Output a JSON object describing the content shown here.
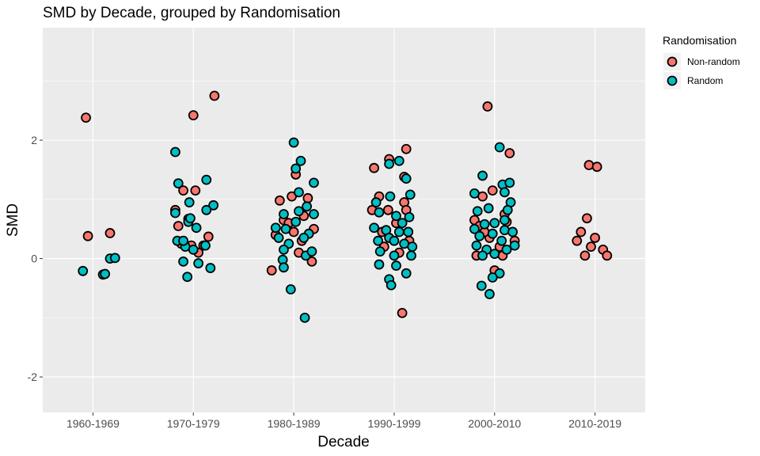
{
  "chart_data": {
    "type": "scatter",
    "title": "SMD by Decade, grouped by Randomisation",
    "xlabel": "Decade",
    "ylabel": "SMD",
    "categories": [
      "1960-1969",
      "1970-1979",
      "1980-1989",
      "1990-1999",
      "2000-2010",
      "2010-2019"
    ],
    "ylim": [
      -2.6,
      3.9
    ],
    "yticks": [
      -2,
      0,
      2
    ],
    "grid": true,
    "legend": {
      "title": "Randomisation",
      "position": "right"
    },
    "series": [
      {
        "name": "Non-random",
        "color": "#F8766D",
        "points": [
          {
            "x": "1960-1969",
            "offset": -0.05,
            "y": 0.38
          },
          {
            "x": "1960-1969",
            "offset": -0.07,
            "y": 2.38
          },
          {
            "x": "1960-1969",
            "offset": 0.17,
            "y": 0.43
          },
          {
            "x": "1970-1979",
            "offset": -0.18,
            "y": 0.82
          },
          {
            "x": "1970-1979",
            "offset": -0.1,
            "y": 1.15
          },
          {
            "x": "1970-1979",
            "offset": 0.0,
            "y": 2.42
          },
          {
            "x": "1970-1979",
            "offset": 0.21,
            "y": 2.75
          },
          {
            "x": "1970-1979",
            "offset": -0.05,
            "y": 0.67
          },
          {
            "x": "1970-1979",
            "offset": 0.02,
            "y": 1.15
          },
          {
            "x": "1970-1979",
            "offset": 0.15,
            "y": 0.37
          },
          {
            "x": "1970-1979",
            "offset": -0.02,
            "y": 0.22
          },
          {
            "x": "1970-1979",
            "offset": 0.1,
            "y": 0.22
          },
          {
            "x": "1970-1979",
            "offset": -0.12,
            "y": 0.25
          },
          {
            "x": "1970-1979",
            "offset": 0.05,
            "y": 0.1
          },
          {
            "x": "1970-1979",
            "offset": -0.15,
            "y": 0.55
          },
          {
            "x": "1980-1989",
            "offset": -0.22,
            "y": -0.2
          },
          {
            "x": "1980-1989",
            "offset": -0.14,
            "y": 0.98
          },
          {
            "x": "1980-1989",
            "offset": 0.02,
            "y": 1.42
          },
          {
            "x": "1980-1989",
            "offset": 0.14,
            "y": 1.02
          },
          {
            "x": "1980-1989",
            "offset": -0.1,
            "y": 0.65
          },
          {
            "x": "1980-1989",
            "offset": 0.0,
            "y": 0.45
          },
          {
            "x": "1980-1989",
            "offset": 0.08,
            "y": 0.3
          },
          {
            "x": "1980-1989",
            "offset": 0.2,
            "y": 0.5
          },
          {
            "x": "1980-1989",
            "offset": -0.05,
            "y": 0.6
          },
          {
            "x": "1980-1989",
            "offset": 0.05,
            "y": 0.1
          },
          {
            "x": "1980-1989",
            "offset": 0.18,
            "y": -0.05
          },
          {
            "x": "1980-1989",
            "offset": -0.18,
            "y": 0.4
          },
          {
            "x": "1980-1989",
            "offset": 0.1,
            "y": 0.72
          },
          {
            "x": "1980-1989",
            "offset": -0.02,
            "y": 1.05
          },
          {
            "x": "1990-1999",
            "offset": -0.22,
            "y": 0.82
          },
          {
            "x": "1990-1999",
            "offset": -0.2,
            "y": 1.53
          },
          {
            "x": "1990-1999",
            "offset": -0.15,
            "y": 1.05
          },
          {
            "x": "1990-1999",
            "offset": -0.06,
            "y": 0.82
          },
          {
            "x": "1990-1999",
            "offset": -0.05,
            "y": 1.68
          },
          {
            "x": "1990-1999",
            "offset": 0.1,
            "y": 1.38
          },
          {
            "x": "1990-1999",
            "offset": 0.12,
            "y": 1.85
          },
          {
            "x": "1990-1999",
            "offset": 0.1,
            "y": 0.95
          },
          {
            "x": "1990-1999",
            "offset": 0.12,
            "y": 0.82
          },
          {
            "x": "1990-1999",
            "offset": 0.08,
            "y": -0.92
          },
          {
            "x": "1990-1999",
            "offset": -0.12,
            "y": 0.45
          },
          {
            "x": "1990-1999",
            "offset": 0.02,
            "y": 0.6
          },
          {
            "x": "1990-1999",
            "offset": -0.1,
            "y": 0.2
          },
          {
            "x": "1990-1999",
            "offset": 0.15,
            "y": 0.3
          },
          {
            "x": "1990-1999",
            "offset": 0.05,
            "y": 0.1
          },
          {
            "x": "2000-2010",
            "offset": -0.2,
            "y": 0.65
          },
          {
            "x": "2000-2010",
            "offset": -0.12,
            "y": 1.05
          },
          {
            "x": "2000-2010",
            "offset": -0.07,
            "y": 2.57
          },
          {
            "x": "2000-2010",
            "offset": -0.02,
            "y": 1.15
          },
          {
            "x": "2000-2010",
            "offset": 0.1,
            "y": 0.75
          },
          {
            "x": "2000-2010",
            "offset": 0.15,
            "y": 1.78
          },
          {
            "x": "2000-2010",
            "offset": 0.2,
            "y": 0.3
          },
          {
            "x": "2000-2010",
            "offset": -0.15,
            "y": 0.55
          },
          {
            "x": "2000-2010",
            "offset": -0.05,
            "y": 0.35
          },
          {
            "x": "2000-2010",
            "offset": 0.05,
            "y": 0.2
          },
          {
            "x": "2000-2010",
            "offset": 0.12,
            "y": 0.62
          },
          {
            "x": "2000-2010",
            "offset": 0.0,
            "y": -0.2
          },
          {
            "x": "2000-2010",
            "offset": -0.1,
            "y": 0.45
          },
          {
            "x": "2000-2010",
            "offset": 0.08,
            "y": 0.05
          },
          {
            "x": "2000-2010",
            "offset": -0.18,
            "y": 0.05
          },
          {
            "x": "2010-2019",
            "offset": -0.18,
            "y": 0.3
          },
          {
            "x": "2010-2019",
            "offset": -0.08,
            "y": 0.68
          },
          {
            "x": "2010-2019",
            "offset": -0.06,
            "y": 1.58
          },
          {
            "x": "2010-2019",
            "offset": 0.02,
            "y": 1.55
          },
          {
            "x": "2010-2019",
            "offset": -0.1,
            "y": 0.05
          },
          {
            "x": "2010-2019",
            "offset": 0.0,
            "y": 0.35
          },
          {
            "x": "2010-2019",
            "offset": 0.08,
            "y": 0.15
          },
          {
            "x": "2010-2019",
            "offset": -0.14,
            "y": 0.45
          },
          {
            "x": "2010-2019",
            "offset": 0.12,
            "y": 0.05
          },
          {
            "x": "2010-2019",
            "offset": -0.04,
            "y": 0.2
          }
        ]
      },
      {
        "name": "Random",
        "color": "#00BFC4",
        "points": [
          {
            "x": "1960-1969",
            "offset": -0.1,
            "y": -0.21
          },
          {
            "x": "1960-1969",
            "offset": 0.1,
            "y": -0.27
          },
          {
            "x": "1960-1969",
            "offset": 0.12,
            "y": -0.26
          },
          {
            "x": "1960-1969",
            "offset": 0.17,
            "y": 0.0
          },
          {
            "x": "1960-1969",
            "offset": 0.22,
            "y": 0.01
          },
          {
            "x": "1970-1979",
            "offset": -0.18,
            "y": 1.8
          },
          {
            "x": "1970-1979",
            "offset": -0.15,
            "y": 1.27
          },
          {
            "x": "1970-1979",
            "offset": -0.04,
            "y": 0.95
          },
          {
            "x": "1970-1979",
            "offset": 0.13,
            "y": 1.33
          },
          {
            "x": "1970-1979",
            "offset": 0.2,
            "y": 0.9
          },
          {
            "x": "1970-1979",
            "offset": 0.13,
            "y": 0.82
          },
          {
            "x": "1970-1979",
            "offset": -0.18,
            "y": 0.77
          },
          {
            "x": "1970-1979",
            "offset": -0.05,
            "y": 0.62
          },
          {
            "x": "1970-1979",
            "offset": 0.03,
            "y": 0.52
          },
          {
            "x": "1970-1979",
            "offset": -0.16,
            "y": 0.3
          },
          {
            "x": "1970-1979",
            "offset": -0.08,
            "y": 0.2
          },
          {
            "x": "1970-1979",
            "offset": 0.0,
            "y": 0.15
          },
          {
            "x": "1970-1979",
            "offset": 0.12,
            "y": 0.22
          },
          {
            "x": "1970-1979",
            "offset": -0.1,
            "y": -0.05
          },
          {
            "x": "1970-1979",
            "offset": 0.05,
            "y": -0.08
          },
          {
            "x": "1970-1979",
            "offset": 0.17,
            "y": -0.16
          },
          {
            "x": "1970-1979",
            "offset": -0.06,
            "y": -0.31
          },
          {
            "x": "1970-1979",
            "offset": -0.03,
            "y": 0.68
          },
          {
            "x": "1970-1979",
            "offset": -0.1,
            "y": 0.3
          },
          {
            "x": "1980-1989",
            "offset": 0.0,
            "y": 1.96
          },
          {
            "x": "1980-1989",
            "offset": 0.02,
            "y": 1.52
          },
          {
            "x": "1980-1989",
            "offset": 0.07,
            "y": 1.65
          },
          {
            "x": "1980-1989",
            "offset": 0.2,
            "y": 1.28
          },
          {
            "x": "1980-1989",
            "offset": 0.05,
            "y": 1.12
          },
          {
            "x": "1980-1989",
            "offset": 0.13,
            "y": 0.88
          },
          {
            "x": "1980-1989",
            "offset": -0.1,
            "y": 0.75
          },
          {
            "x": "1980-1989",
            "offset": 0.2,
            "y": 0.75
          },
          {
            "x": "1980-1989",
            "offset": -0.18,
            "y": 0.52
          },
          {
            "x": "1980-1989",
            "offset": -0.08,
            "y": 0.5
          },
          {
            "x": "1980-1989",
            "offset": 0.02,
            "y": 0.62
          },
          {
            "x": "1980-1989",
            "offset": 0.15,
            "y": 0.42
          },
          {
            "x": "1980-1989",
            "offset": -0.15,
            "y": 0.35
          },
          {
            "x": "1980-1989",
            "offset": -0.05,
            "y": 0.25
          },
          {
            "x": "1980-1989",
            "offset": 0.1,
            "y": 0.35
          },
          {
            "x": "1980-1989",
            "offset": -0.1,
            "y": 0.15
          },
          {
            "x": "1980-1989",
            "offset": -0.11,
            "y": -0.02
          },
          {
            "x": "1980-1989",
            "offset": 0.12,
            "y": 0.05
          },
          {
            "x": "1980-1989",
            "offset": 0.18,
            "y": 0.12
          },
          {
            "x": "1980-1989",
            "offset": -0.03,
            "y": -0.52
          },
          {
            "x": "1980-1989",
            "offset": 0.11,
            "y": -1.0
          },
          {
            "x": "1980-1989",
            "offset": -0.1,
            "y": -0.15
          },
          {
            "x": "1980-1989",
            "offset": 0.05,
            "y": 0.8
          },
          {
            "x": "1990-1999",
            "offset": -0.05,
            "y": 1.6
          },
          {
            "x": "1990-1999",
            "offset": 0.05,
            "y": 1.65
          },
          {
            "x": "1990-1999",
            "offset": 0.12,
            "y": 1.35
          },
          {
            "x": "1990-1999",
            "offset": -0.18,
            "y": 0.95
          },
          {
            "x": "1990-1999",
            "offset": -0.04,
            "y": 1.05
          },
          {
            "x": "1990-1999",
            "offset": 0.16,
            "y": 1.08
          },
          {
            "x": "1990-1999",
            "offset": -0.15,
            "y": 0.78
          },
          {
            "x": "1990-1999",
            "offset": 0.02,
            "y": 0.72
          },
          {
            "x": "1990-1999",
            "offset": 0.15,
            "y": 0.7
          },
          {
            "x": "1990-1999",
            "offset": -0.2,
            "y": 0.52
          },
          {
            "x": "1990-1999",
            "offset": -0.08,
            "y": 0.48
          },
          {
            "x": "1990-1999",
            "offset": 0.05,
            "y": 0.45
          },
          {
            "x": "1990-1999",
            "offset": 0.14,
            "y": 0.45
          },
          {
            "x": "1990-1999",
            "offset": -0.16,
            "y": 0.3
          },
          {
            "x": "1990-1999",
            "offset": -0.05,
            "y": 0.35
          },
          {
            "x": "1990-1999",
            "offset": 0.1,
            "y": 0.25
          },
          {
            "x": "1990-1999",
            "offset": 0.18,
            "y": 0.2
          },
          {
            "x": "1990-1999",
            "offset": -0.14,
            "y": 0.12
          },
          {
            "x": "1990-1999",
            "offset": 0.0,
            "y": 0.05
          },
          {
            "x": "1990-1999",
            "offset": 0.17,
            "y": 0.05
          },
          {
            "x": "1990-1999",
            "offset": -0.15,
            "y": -0.1
          },
          {
            "x": "1990-1999",
            "offset": 0.02,
            "y": -0.12
          },
          {
            "x": "1990-1999",
            "offset": 0.12,
            "y": -0.25
          },
          {
            "x": "1990-1999",
            "offset": -0.05,
            "y": -0.35
          },
          {
            "x": "1990-1999",
            "offset": -0.03,
            "y": -0.45
          },
          {
            "x": "1990-1999",
            "offset": 0.0,
            "y": 0.3
          },
          {
            "x": "1990-1999",
            "offset": 0.08,
            "y": 0.6
          },
          {
            "x": "2000-2010",
            "offset": -0.2,
            "y": 1.1
          },
          {
            "x": "2000-2010",
            "offset": -0.12,
            "y": 1.4
          },
          {
            "x": "2000-2010",
            "offset": 0.05,
            "y": 1.88
          },
          {
            "x": "2000-2010",
            "offset": 0.08,
            "y": 1.25
          },
          {
            "x": "2000-2010",
            "offset": 0.15,
            "y": 1.28
          },
          {
            "x": "2000-2010",
            "offset": 0.1,
            "y": 1.12
          },
          {
            "x": "2000-2010",
            "offset": -0.17,
            "y": 0.8
          },
          {
            "x": "2000-2010",
            "offset": -0.06,
            "y": 0.85
          },
          {
            "x": "2000-2010",
            "offset": 0.16,
            "y": 0.95
          },
          {
            "x": "2000-2010",
            "offset": 0.13,
            "y": 0.82
          },
          {
            "x": "2000-2010",
            "offset": -0.2,
            "y": 0.5
          },
          {
            "x": "2000-2010",
            "offset": -0.1,
            "y": 0.58
          },
          {
            "x": "2000-2010",
            "offset": 0.0,
            "y": 0.6
          },
          {
            "x": "2000-2010",
            "offset": 0.1,
            "y": 0.48
          },
          {
            "x": "2000-2010",
            "offset": 0.18,
            "y": 0.45
          },
          {
            "x": "2000-2010",
            "offset": -0.15,
            "y": 0.38
          },
          {
            "x": "2000-2010",
            "offset": -0.02,
            "y": 0.42
          },
          {
            "x": "2000-2010",
            "offset": 0.07,
            "y": 0.3
          },
          {
            "x": "2000-2010",
            "offset": 0.2,
            "y": 0.22
          },
          {
            "x": "2000-2010",
            "offset": -0.18,
            "y": 0.22
          },
          {
            "x": "2000-2010",
            "offset": -0.08,
            "y": 0.15
          },
          {
            "x": "2000-2010",
            "offset": 0.12,
            "y": 0.15
          },
          {
            "x": "2000-2010",
            "offset": -0.12,
            "y": 0.05
          },
          {
            "x": "2000-2010",
            "offset": 0.0,
            "y": 0.08
          },
          {
            "x": "2000-2010",
            "offset": 0.05,
            "y": -0.25
          },
          {
            "x": "2000-2010",
            "offset": -0.02,
            "y": -0.32
          },
          {
            "x": "2000-2010",
            "offset": -0.13,
            "y": -0.46
          },
          {
            "x": "2000-2010",
            "offset": -0.05,
            "y": -0.6
          },
          {
            "x": "2000-2010",
            "offset": 0.1,
            "y": 0.65
          }
        ]
      }
    ]
  }
}
